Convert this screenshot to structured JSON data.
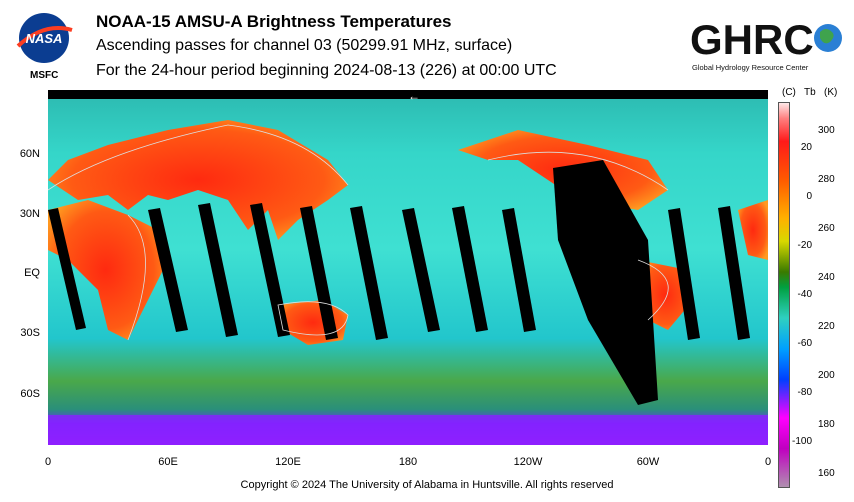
{
  "header": {
    "title": "NOAA-15 AMSU-A Brightness Temperatures",
    "subtitle_1": "Ascending passes for channel 03 (50299.91 MHz, surface)",
    "subtitle_2": "For the 24-hour period beginning 2024-08-13 (226) at 00:00 UTC"
  },
  "logos": {
    "nasa_text": "NASA",
    "msfc_label": "MSFC",
    "ghrc_text": "GHRC",
    "ghrc_caption": "Global Hydrology Resource Center"
  },
  "map": {
    "lat_labels": [
      "60N",
      "30N",
      "EQ",
      "30S",
      "60S"
    ],
    "lon_labels": [
      "0",
      "60E",
      "120E",
      "180",
      "120W",
      "60W",
      "0"
    ],
    "date_line_marker": "←"
  },
  "colorbar": {
    "header_c": "(C)",
    "header_tb": "Tb",
    "header_k": "(K)",
    "celsius_ticks": [
      "20",
      "0",
      "-20",
      "-40",
      "-60",
      "-80",
      "-100"
    ],
    "kelvin_ticks": [
      "300",
      "280",
      "260",
      "240",
      "220",
      "200",
      "180",
      "160"
    ],
    "range_k": [
      150,
      305
    ]
  },
  "footer": {
    "copyright": "Copyright © 2024 The University of Alabama in Huntsville.  All rights reserved"
  },
  "colors": {
    "warm": "#ff3c10",
    "mid": "#2ed3c8",
    "cold": "#1a6dff",
    "polar": "#8c1cff",
    "missing": "#000000"
  }
}
